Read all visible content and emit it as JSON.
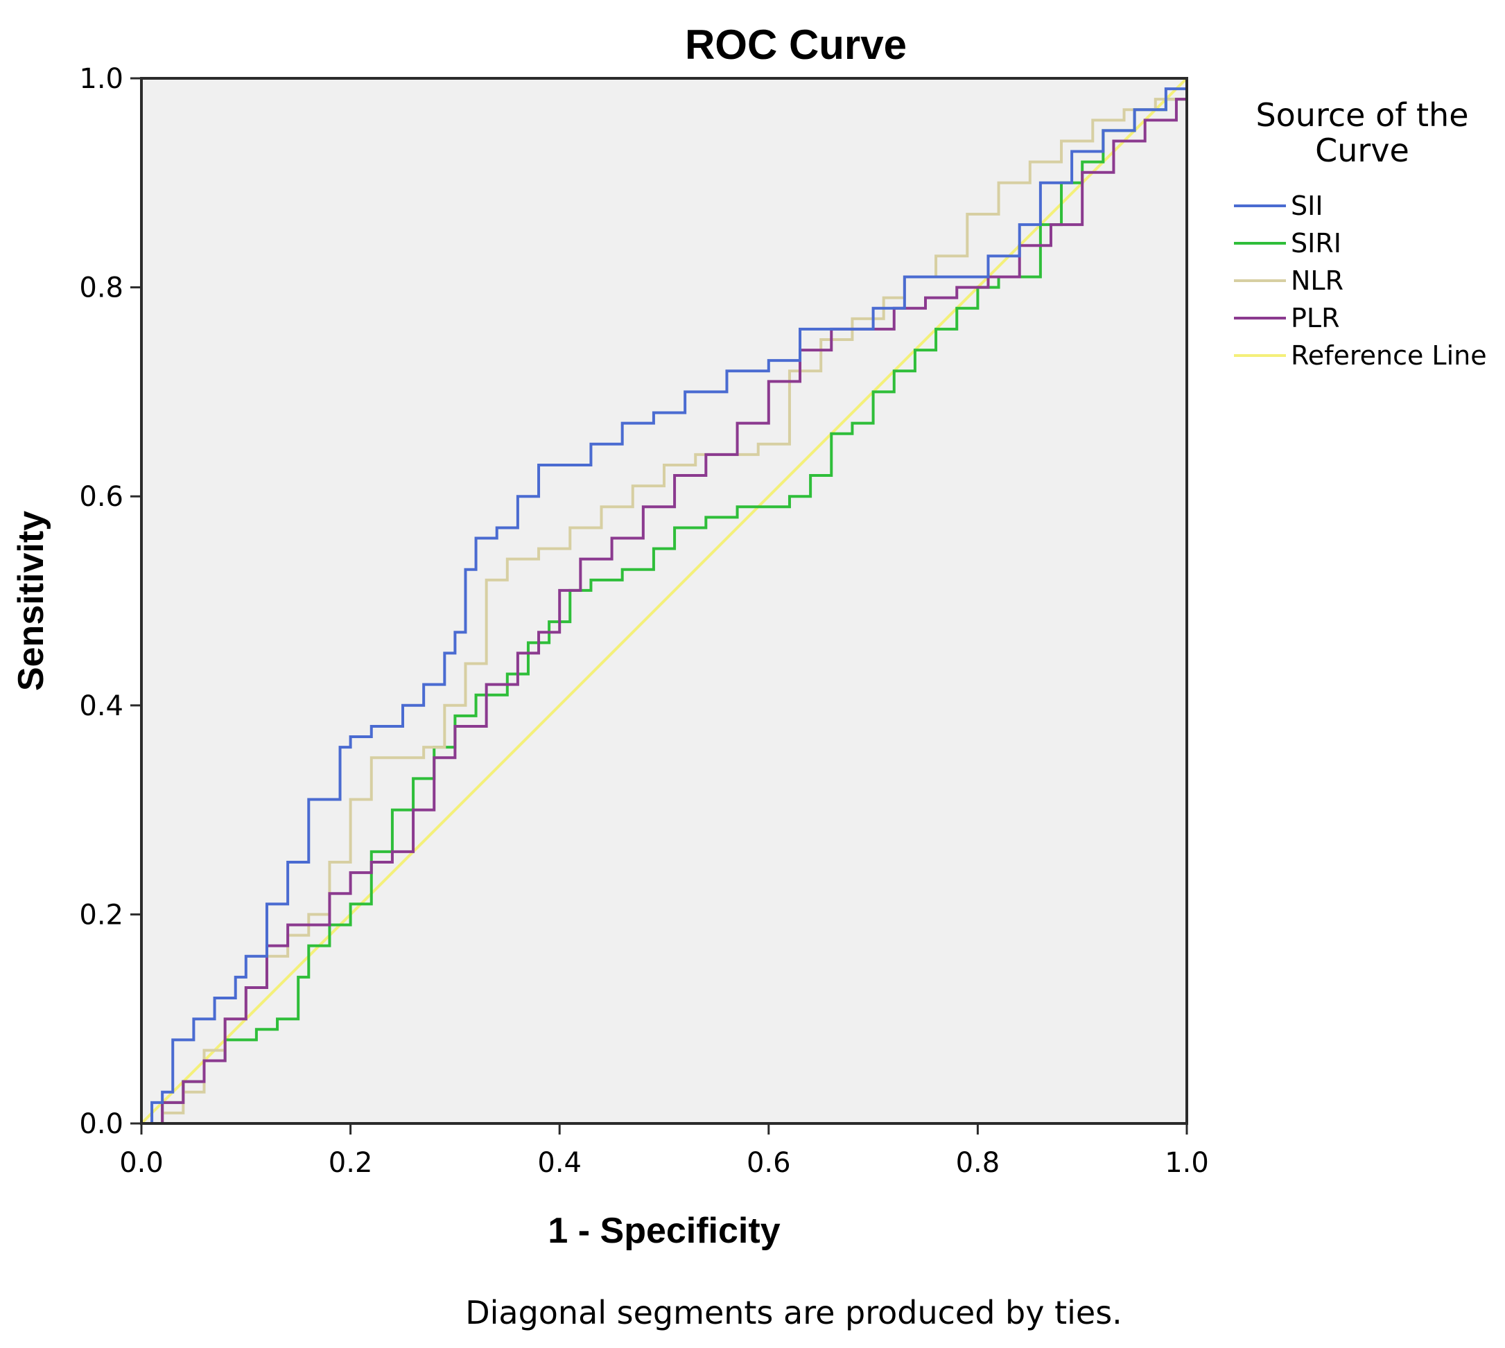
{
  "chart_data": {
    "type": "line",
    "title": "ROC Curve",
    "xlabel": "1 - Specificity",
    "ylabel": "Sensitivity",
    "xlim": [
      0,
      1
    ],
    "ylim": [
      0,
      1
    ],
    "xticks": [
      "0.0",
      "0.2",
      "0.4",
      "0.6",
      "0.8",
      "1.0"
    ],
    "yticks": [
      "0.0",
      "0.2",
      "0.4",
      "0.6",
      "0.8",
      "1.0"
    ],
    "grid": false,
    "legend": {
      "title_line1": "Source of the",
      "title_line2": "Curve",
      "placement": "right"
    },
    "footnote": "Diagonal segments are produced by ties.",
    "series": [
      {
        "name": "SII",
        "color": "#4a6bd1",
        "x": [
          0,
          0.01,
          0.02,
          0.03,
          0.05,
          0.07,
          0.09,
          0.1,
          0.12,
          0.14,
          0.16,
          0.17,
          0.19,
          0.2,
          0.22,
          0.25,
          0.27,
          0.29,
          0.3,
          0.31,
          0.32,
          0.34,
          0.36,
          0.38,
          0.4,
          0.43,
          0.46,
          0.49,
          0.52,
          0.56,
          0.6,
          0.63,
          0.67,
          0.7,
          0.73,
          0.77,
          0.81,
          0.84,
          0.86,
          0.89,
          0.92,
          0.95,
          0.98,
          1.0
        ],
        "y": [
          0,
          0.02,
          0.03,
          0.08,
          0.1,
          0.12,
          0.14,
          0.16,
          0.21,
          0.25,
          0.31,
          0.31,
          0.36,
          0.37,
          0.38,
          0.4,
          0.42,
          0.45,
          0.47,
          0.53,
          0.56,
          0.57,
          0.6,
          0.63,
          0.63,
          0.65,
          0.67,
          0.68,
          0.7,
          0.72,
          0.73,
          0.76,
          0.76,
          0.78,
          0.81,
          0.81,
          0.83,
          0.86,
          0.9,
          0.93,
          0.95,
          0.97,
          0.99,
          1.0
        ]
      },
      {
        "name": "SIRI",
        "color": "#2fbe3a",
        "x": [
          0,
          0.02,
          0.04,
          0.06,
          0.08,
          0.11,
          0.13,
          0.15,
          0.16,
          0.18,
          0.2,
          0.22,
          0.24,
          0.26,
          0.28,
          0.3,
          0.32,
          0.35,
          0.37,
          0.39,
          0.41,
          0.43,
          0.46,
          0.49,
          0.51,
          0.54,
          0.57,
          0.6,
          0.62,
          0.64,
          0.66,
          0.68,
          0.7,
          0.72,
          0.74,
          0.76,
          0.78,
          0.8,
          0.82,
          0.84,
          0.86,
          0.88,
          0.9,
          0.92,
          0.95,
          0.98,
          1.0
        ],
        "y": [
          0,
          0.02,
          0.04,
          0.06,
          0.08,
          0.09,
          0.1,
          0.14,
          0.17,
          0.19,
          0.21,
          0.26,
          0.3,
          0.33,
          0.36,
          0.39,
          0.41,
          0.43,
          0.46,
          0.48,
          0.51,
          0.52,
          0.53,
          0.55,
          0.57,
          0.58,
          0.59,
          0.59,
          0.6,
          0.62,
          0.66,
          0.67,
          0.7,
          0.72,
          0.74,
          0.76,
          0.78,
          0.8,
          0.81,
          0.81,
          0.86,
          0.9,
          0.92,
          0.95,
          0.97,
          0.98,
          1.0
        ]
      },
      {
        "name": "NLR",
        "color": "#d7cfa2",
        "x": [
          0,
          0.02,
          0.04,
          0.06,
          0.08,
          0.1,
          0.12,
          0.14,
          0.16,
          0.18,
          0.2,
          0.22,
          0.25,
          0.27,
          0.29,
          0.31,
          0.33,
          0.35,
          0.38,
          0.41,
          0.44,
          0.47,
          0.5,
          0.53,
          0.56,
          0.59,
          0.62,
          0.65,
          0.68,
          0.71,
          0.73,
          0.76,
          0.79,
          0.82,
          0.85,
          0.88,
          0.91,
          0.94,
          0.97,
          1.0
        ],
        "y": [
          0,
          0.01,
          0.03,
          0.07,
          0.1,
          0.13,
          0.16,
          0.18,
          0.2,
          0.25,
          0.31,
          0.35,
          0.35,
          0.36,
          0.4,
          0.44,
          0.52,
          0.54,
          0.55,
          0.57,
          0.59,
          0.61,
          0.63,
          0.64,
          0.64,
          0.65,
          0.72,
          0.75,
          0.77,
          0.79,
          0.81,
          0.83,
          0.87,
          0.9,
          0.92,
          0.94,
          0.96,
          0.97,
          0.98,
          1.0
        ]
      },
      {
        "name": "PLR",
        "color": "#8b3a8f",
        "x": [
          0,
          0.02,
          0.04,
          0.06,
          0.08,
          0.1,
          0.12,
          0.14,
          0.16,
          0.18,
          0.2,
          0.22,
          0.24,
          0.26,
          0.28,
          0.3,
          0.33,
          0.36,
          0.38,
          0.4,
          0.42,
          0.45,
          0.48,
          0.51,
          0.54,
          0.57,
          0.6,
          0.63,
          0.66,
          0.69,
          0.72,
          0.75,
          0.78,
          0.81,
          0.84,
          0.87,
          0.9,
          0.93,
          0.96,
          0.99,
          1.0
        ],
        "y": [
          0,
          0.02,
          0.04,
          0.06,
          0.1,
          0.13,
          0.17,
          0.19,
          0.19,
          0.22,
          0.24,
          0.25,
          0.26,
          0.3,
          0.35,
          0.38,
          0.42,
          0.45,
          0.47,
          0.51,
          0.54,
          0.56,
          0.59,
          0.62,
          0.64,
          0.67,
          0.71,
          0.74,
          0.76,
          0.76,
          0.78,
          0.79,
          0.8,
          0.81,
          0.84,
          0.86,
          0.91,
          0.94,
          0.96,
          0.98,
          1.0
        ]
      },
      {
        "name": "Reference Line",
        "color": "#f4f07a",
        "x": [
          0,
          1
        ],
        "y": [
          0,
          1
        ]
      }
    ]
  }
}
